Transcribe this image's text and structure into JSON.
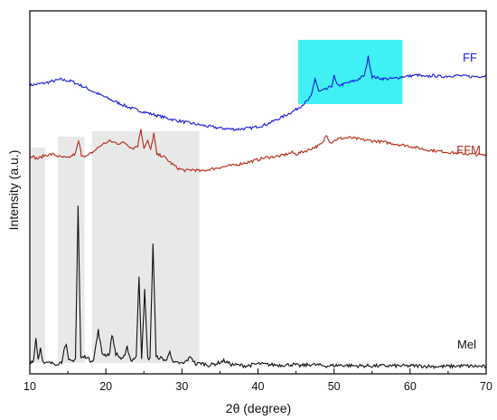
{
  "chart_data": {
    "type": "line",
    "title": "",
    "xlabel": "2θ (degree)",
    "ylabel": "Intensity (a.u.)",
    "xlim": [
      10,
      70
    ],
    "xticks": [
      10,
      20,
      30,
      40,
      50,
      60,
      70
    ],
    "y_scale": "arbitrary, curves vertically offset",
    "grid": false,
    "legend": "inline labels at right end of each curve",
    "series": [
      {
        "name": "FF",
        "color": "#1a1adb",
        "points": [
          [
            10.0,
            0.9
          ],
          [
            12.0,
            1.3
          ],
          [
            14.0,
            1.9
          ],
          [
            15.5,
            1.6
          ],
          [
            17.0,
            0.7
          ],
          [
            19.0,
            -0.6
          ],
          [
            21.0,
            -1.8
          ],
          [
            23.0,
            -2.9
          ],
          [
            25.0,
            -3.7
          ],
          [
            27.0,
            -4.4
          ],
          [
            29.0,
            -5.1
          ],
          [
            31.0,
            -5.6
          ],
          [
            33.0,
            -6.1
          ],
          [
            35.0,
            -6.5
          ],
          [
            37.0,
            -6.7
          ],
          [
            39.0,
            -6.5
          ],
          [
            41.0,
            -5.9
          ],
          [
            43.0,
            -4.7
          ],
          [
            45.0,
            -3.3
          ],
          [
            46.5,
            -1.8
          ],
          [
            47.0,
            -1.0
          ],
          [
            47.5,
            2.1
          ],
          [
            48.0,
            -0.2
          ],
          [
            49.0,
            0.2
          ],
          [
            49.7,
            0.8
          ],
          [
            50.0,
            2.5
          ],
          [
            50.4,
            0.9
          ],
          [
            51.0,
            1.0
          ],
          [
            52.0,
            1.4
          ],
          [
            53.0,
            1.8
          ],
          [
            54.0,
            2.6
          ],
          [
            54.5,
            5.8
          ],
          [
            55.0,
            2.4
          ],
          [
            56.0,
            2.1
          ],
          [
            57.0,
            2.0
          ],
          [
            58.0,
            2.1
          ],
          [
            59.0,
            2.4
          ],
          [
            60.0,
            2.5
          ],
          [
            61.0,
            2.7
          ],
          [
            62.0,
            2.3
          ],
          [
            63.0,
            2.6
          ],
          [
            64.0,
            2.4
          ],
          [
            66.0,
            2.6
          ],
          [
            68.0,
            2.4
          ],
          [
            70.0,
            2.5
          ]
        ]
      },
      {
        "name": "FFM",
        "color": "#b52a18",
        "points": [
          [
            10.0,
            0.7
          ],
          [
            11.0,
            0.1
          ],
          [
            12.0,
            0.7
          ],
          [
            13.0,
            0.9
          ],
          [
            14.0,
            0.4
          ],
          [
            15.0,
            0.2
          ],
          [
            16.0,
            1.0
          ],
          [
            16.4,
            3.2
          ],
          [
            16.8,
            0.8
          ],
          [
            17.5,
            0.5
          ],
          [
            18.5,
            1.5
          ],
          [
            19.5,
            2.6
          ],
          [
            20.5,
            3.2
          ],
          [
            21.5,
            2.8
          ],
          [
            22.5,
            2.9
          ],
          [
            23.5,
            1.9
          ],
          [
            24.2,
            2.4
          ],
          [
            24.6,
            5.4
          ],
          [
            25.0,
            2.0
          ],
          [
            25.5,
            3.2
          ],
          [
            25.9,
            1.6
          ],
          [
            26.3,
            4.6
          ],
          [
            26.7,
            0.8
          ],
          [
            27.5,
            0.6
          ],
          [
            28.5,
            -0.6
          ],
          [
            29.5,
            -1.6
          ],
          [
            30.5,
            -2.0
          ],
          [
            31.5,
            -1.8
          ],
          [
            32.5,
            -2.1
          ],
          [
            33.5,
            -1.8
          ],
          [
            35.0,
            -1.4
          ],
          [
            37.0,
            -1.0
          ],
          [
            39.0,
            -0.4
          ],
          [
            41.0,
            0.3
          ],
          [
            43.0,
            0.6
          ],
          [
            44.5,
            1.2
          ],
          [
            45.0,
            0.9
          ],
          [
            46.5,
            1.6
          ],
          [
            48.0,
            2.4
          ],
          [
            48.5,
            2.8
          ],
          [
            49.0,
            4.4
          ],
          [
            49.5,
            2.9
          ],
          [
            50.5,
            3.6
          ],
          [
            52.0,
            3.8
          ],
          [
            54.0,
            3.4
          ],
          [
            56.0,
            3.1
          ],
          [
            58.0,
            2.7
          ],
          [
            60.0,
            2.3
          ],
          [
            62.0,
            1.7
          ],
          [
            64.0,
            1.4
          ],
          [
            66.0,
            1.1
          ],
          [
            68.0,
            0.9
          ],
          [
            70.0,
            0.7
          ]
        ]
      },
      {
        "name": "Mel",
        "color": "#111111",
        "points": [
          [
            10.0,
            0.6
          ],
          [
            10.5,
            0.9
          ],
          [
            10.8,
            4.0
          ],
          [
            11.1,
            1.0
          ],
          [
            11.4,
            2.6
          ],
          [
            11.8,
            0.4
          ],
          [
            12.5,
            0.5
          ],
          [
            13.5,
            0.4
          ],
          [
            14.2,
            0.6
          ],
          [
            14.5,
            2.6
          ],
          [
            14.8,
            2.8
          ],
          [
            15.1,
            0.8
          ],
          [
            15.6,
            0.8
          ],
          [
            16.0,
            1.1
          ],
          [
            16.35,
            22.2
          ],
          [
            16.7,
            1.2
          ],
          [
            17.5,
            1.4
          ],
          [
            17.9,
            0.8
          ],
          [
            18.4,
            1.0
          ],
          [
            19.0,
            5.0
          ],
          [
            19.5,
            1.8
          ],
          [
            20.0,
            1.6
          ],
          [
            20.5,
            1.8
          ],
          [
            20.8,
            4.5
          ],
          [
            21.3,
            1.8
          ],
          [
            22.0,
            1.1
          ],
          [
            22.5,
            1.4
          ],
          [
            22.8,
            2.7
          ],
          [
            23.3,
            0.8
          ],
          [
            24.0,
            1.4
          ],
          [
            24.35,
            12.5
          ],
          [
            24.7,
            1.2
          ],
          [
            25.1,
            10.5
          ],
          [
            25.5,
            1.1
          ],
          [
            25.8,
            1.2
          ],
          [
            26.2,
            17.0
          ],
          [
            26.6,
            1.3
          ],
          [
            27.2,
            1.2
          ],
          [
            28.0,
            0.8
          ],
          [
            28.4,
            2.3
          ],
          [
            28.8,
            0.5
          ],
          [
            29.5,
            0.5
          ],
          [
            30.2,
            0.4
          ],
          [
            31.2,
            1.4
          ],
          [
            31.8,
            0.3
          ],
          [
            32.5,
            0.5
          ],
          [
            33.5,
            0.2
          ],
          [
            34.5,
            0.4
          ],
          [
            35.5,
            0.8
          ],
          [
            36.5,
            0.3
          ],
          [
            37.5,
            0.2
          ],
          [
            38.5,
            0.1
          ],
          [
            40.0,
            0.4
          ],
          [
            41.0,
            0.3
          ],
          [
            43.0,
            0.2
          ],
          [
            44.5,
            0.3
          ],
          [
            45.5,
            0.1
          ],
          [
            47.0,
            0.3
          ],
          [
            49.0,
            0.1
          ],
          [
            51.0,
            0.2
          ],
          [
            53.0,
            0.1
          ],
          [
            55.0,
            0.1
          ],
          [
            58.0,
            0.1
          ],
          [
            61.0,
            0.1
          ],
          [
            64.0,
            0.0
          ],
          [
            67.0,
            0.1
          ],
          [
            70.0,
            0.0
          ]
        ]
      }
    ],
    "highlight_bands": [
      {
        "x0": 10.0,
        "x1": 12.0,
        "color": "#e8e8e8"
      },
      {
        "x0": 13.7,
        "x1": 17.2,
        "color": "#e8e8e8"
      },
      {
        "x0": 18.2,
        "x1": 32.3,
        "color": "#e8e8e8"
      },
      {
        "x0": 45.3,
        "x1": 59.0,
        "color": "#3ff0f4"
      }
    ]
  }
}
